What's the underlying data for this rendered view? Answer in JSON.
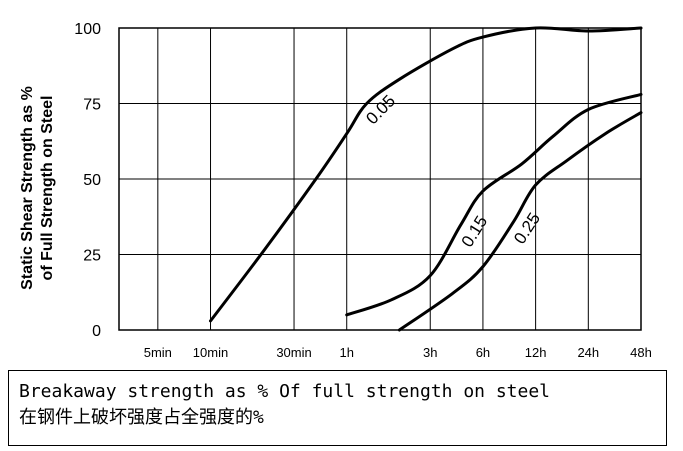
{
  "chart_data": {
    "type": "line",
    "ylabel_line1": "Static Shear Strength as %",
    "ylabel_line2": "of Full Strength on Steel",
    "ylim": [
      0,
      100
    ],
    "y_ticks": [
      "0",
      "25",
      "50",
      "75",
      "100"
    ],
    "x_ticks": [
      "5min",
      "10min",
      "30min",
      "1h",
      "3h",
      "6h",
      "12h",
      "24h",
      "48h"
    ],
    "grid": true,
    "series": [
      {
        "name": "0.05",
        "points": [
          [
            "10min",
            3
          ],
          [
            "20min",
            26
          ],
          [
            "40min",
            50
          ],
          [
            "1h",
            65
          ],
          [
            "1.3h",
            75
          ],
          [
            "2h",
            83
          ],
          [
            "4h",
            93
          ],
          [
            "6h",
            97
          ],
          [
            "12h",
            100
          ],
          [
            "24h",
            99
          ],
          [
            "48h",
            100
          ]
        ]
      },
      {
        "name": "0.15",
        "points": [
          [
            "1h",
            5
          ],
          [
            "1.8h",
            10
          ],
          [
            "3h",
            18
          ],
          [
            "4.5h",
            35
          ],
          [
            "6h",
            46
          ],
          [
            "10h",
            55
          ],
          [
            "15h",
            64
          ],
          [
            "24h",
            73
          ],
          [
            "48h",
            78
          ]
        ]
      },
      {
        "name": "0.25",
        "points": [
          [
            "2h",
            0
          ],
          [
            "4h",
            12
          ],
          [
            "6h",
            21
          ],
          [
            "9h",
            36
          ],
          [
            "12h",
            48
          ],
          [
            "18h",
            56
          ],
          [
            "30h",
            65
          ],
          [
            "48h",
            72
          ]
        ]
      }
    ]
  },
  "caption": {
    "line1": "Breakaway strength as  % Of full strength on steel",
    "line2": "在钢件上破坏强度占全强度的%"
  }
}
